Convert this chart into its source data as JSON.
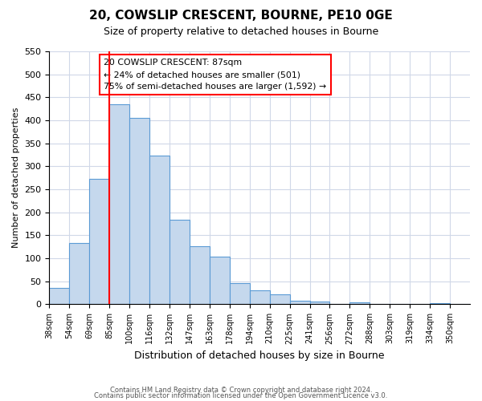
{
  "title": "20, COWSLIP CRESCENT, BOURNE, PE10 0GE",
  "subtitle": "Size of property relative to detached houses in Bourne",
  "xlabel": "Distribution of detached houses by size in Bourne",
  "ylabel": "Number of detached properties",
  "bar_labels": [
    "38sqm",
    "54sqm",
    "69sqm",
    "85sqm",
    "100sqm",
    "116sqm",
    "132sqm",
    "147sqm",
    "163sqm",
    "178sqm",
    "194sqm",
    "210sqm",
    "225sqm",
    "241sqm",
    "256sqm",
    "272sqm",
    "288sqm",
    "303sqm",
    "319sqm",
    "334sqm",
    "350sqm"
  ],
  "bar_heights": [
    35,
    133,
    272,
    435,
    405,
    323,
    184,
    127,
    103,
    46,
    30,
    21,
    8,
    6,
    0,
    5,
    0,
    0,
    0,
    3,
    0
  ],
  "bar_color": "#c5d8ed",
  "bar_edge_color": "#5b9bd5",
  "ylim": [
    0,
    550
  ],
  "yticks": [
    0,
    50,
    100,
    150,
    200,
    250,
    300,
    350,
    400,
    450,
    500,
    550
  ],
  "red_line_x": 3,
  "annotation_title": "20 COWSLIP CRESCENT: 87sqm",
  "annotation_line1": "← 24% of detached houses are smaller (501)",
  "annotation_line2": "75% of semi-detached houses are larger (1,592) →",
  "footer1": "Contains HM Land Registry data © Crown copyright and database right 2024.",
  "footer2": "Contains public sector information licensed under the Open Government Licence v3.0.",
  "background_color": "#ffffff",
  "grid_color": "#d0d8e8"
}
